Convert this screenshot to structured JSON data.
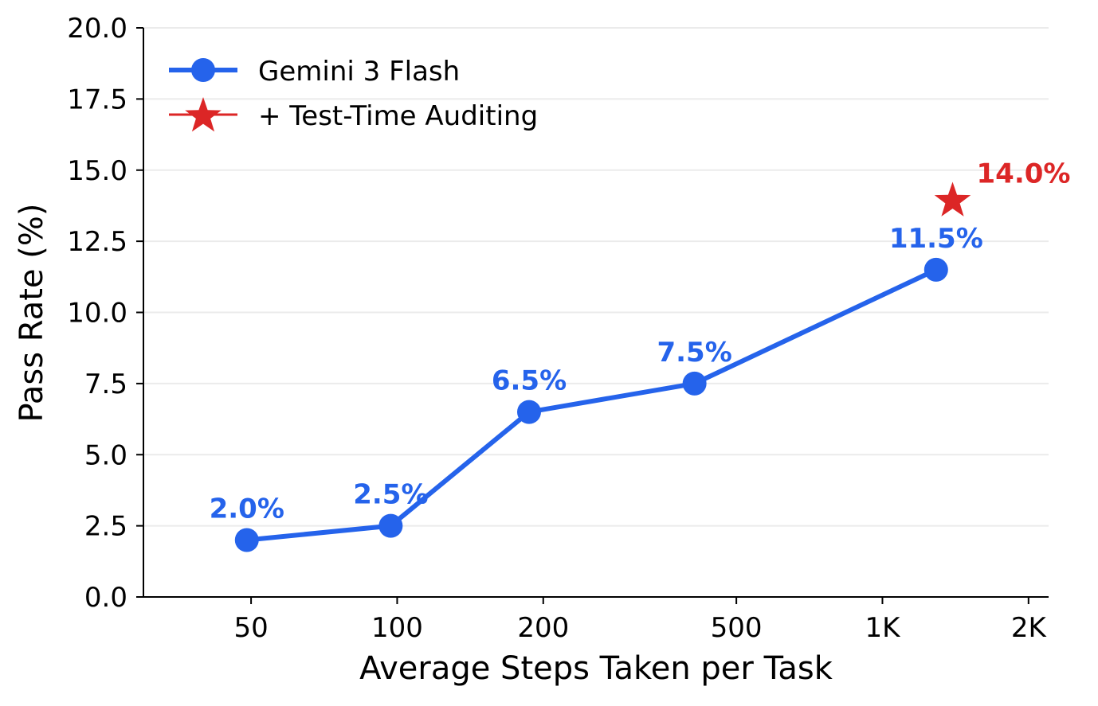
{
  "chart_data": {
    "type": "line",
    "title": "",
    "xlabel": "Average Steps Taken per Task",
    "ylabel": "Pass Rate (%)",
    "x_scale": "log",
    "xlim": [
      30,
      2200
    ],
    "ylim": [
      0,
      20
    ],
    "x_ticks": [
      50,
      100,
      200,
      500,
      1000,
      2000
    ],
    "x_tick_labels": [
      "50",
      "100",
      "200",
      "500",
      "1K",
      "2K"
    ],
    "y_ticks": [
      0,
      2.5,
      5,
      7.5,
      10,
      12.5,
      15,
      17.5,
      20
    ],
    "y_tick_labels": [
      "0.0",
      "2.5",
      "5.0",
      "7.5",
      "10.0",
      "12.5",
      "15.0",
      "17.5",
      "20.0"
    ],
    "grid": "horizontal",
    "legend_position": "top-left",
    "series": [
      {
        "name": "Gemini 3 Flash",
        "color": "#2563eb",
        "marker": "circle",
        "x": [
          49,
          97,
          187,
          410,
          1290
        ],
        "y": [
          2.0,
          2.5,
          6.5,
          7.5,
          11.5
        ],
        "labels": [
          "2.0%",
          "2.5%",
          "6.5%",
          "7.5%",
          "11.5%"
        ]
      },
      {
        "name": "+ Test-Time Auditing",
        "color": "#dc2626",
        "marker": "star",
        "x": [
          1395
        ],
        "y": [
          14.0
        ],
        "labels": [
          "14.0%"
        ]
      }
    ]
  }
}
